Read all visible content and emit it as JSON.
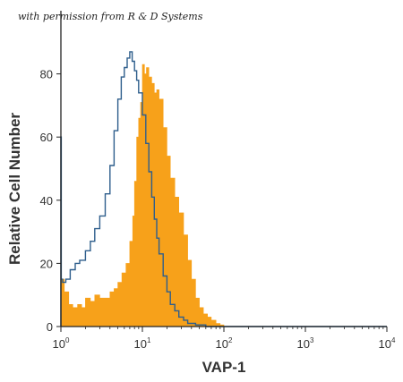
{
  "watermark": "with permission from R & D Systems",
  "chart_data": {
    "type": "area",
    "xlabel": "VAP-1",
    "ylabel": "Relative Cell Number",
    "x_scale": "log",
    "xlim": [
      1,
      10000
    ],
    "ylim": [
      0,
      100
    ],
    "x_ticks": [
      {
        "base": "10",
        "exp": "0",
        "value": 1
      },
      {
        "base": "10",
        "exp": "1",
        "value": 10
      },
      {
        "base": "10",
        "exp": "2",
        "value": 100
      },
      {
        "base": "10",
        "exp": "3",
        "value": 1000
      },
      {
        "base": "10",
        "exp": "4",
        "value": 10000
      }
    ],
    "y_ticks": [
      "0",
      "20",
      "40",
      "60",
      "80"
    ],
    "grid": false,
    "series": [
      {
        "style": "filled",
        "color": "#F7A11A",
        "x": [
          1,
          1.1,
          1.25,
          1.4,
          1.6,
          1.8,
          2.0,
          2.3,
          2.6,
          3.0,
          3.4,
          4.0,
          4.5,
          5.0,
          5.6,
          6.3,
          7.0,
          7.6,
          8.0,
          8.5,
          9.0,
          9.5,
          10,
          10.6,
          11.2,
          12,
          13,
          14,
          15,
          16,
          18,
          20,
          22,
          25,
          28,
          32,
          36,
          40,
          45,
          50,
          56,
          63,
          70,
          80,
          90,
          100
        ],
        "y": [
          15,
          11,
          7,
          6,
          7,
          6,
          9,
          8,
          10,
          9,
          9,
          11,
          12,
          14,
          17,
          20,
          27,
          35,
          46,
          60,
          66,
          71,
          83,
          80,
          82,
          79,
          77,
          74,
          75,
          72,
          63,
          54,
          47,
          41,
          36,
          29,
          21,
          15,
          9,
          6,
          4,
          3,
          2,
          1,
          0.5,
          0
        ]
      },
      {
        "style": "outline",
        "color": "#2E5E8C",
        "x": [
          1,
          1.01,
          1.05,
          1.15,
          1.3,
          1.5,
          1.7,
          2.0,
          2.3,
          2.6,
          3.0,
          3.5,
          4.0,
          4.5,
          5.0,
          5.5,
          6.0,
          6.5,
          7.0,
          7.5,
          8.0,
          8.5,
          9.0,
          10,
          11,
          12,
          13,
          14,
          15,
          16,
          18,
          20,
          22,
          25,
          28,
          32,
          36,
          40,
          45,
          50,
          60,
          100,
          10000
        ],
        "y": [
          60,
          15,
          14,
          15,
          18,
          20,
          21,
          24,
          27,
          31,
          35,
          42,
          51,
          62,
          72,
          79,
          82,
          85,
          87,
          84,
          81,
          78,
          74,
          67,
          58,
          49,
          41,
          34,
          28,
          23,
          16,
          11,
          7,
          5,
          3,
          2,
          1,
          1,
          0.5,
          0.5,
          0,
          0,
          0
        ]
      }
    ]
  }
}
